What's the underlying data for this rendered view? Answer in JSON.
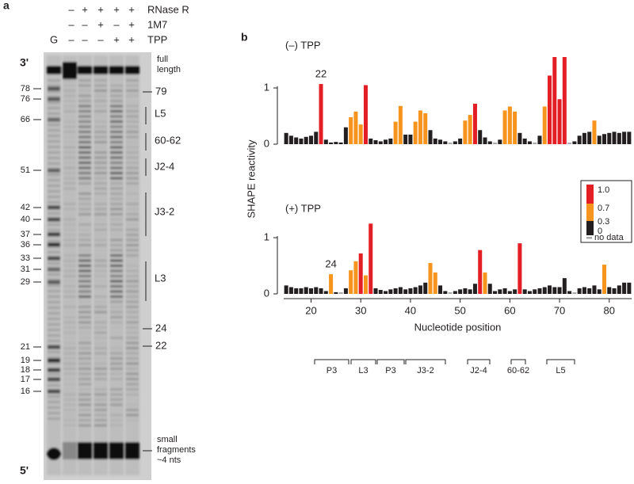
{
  "figure_labels": {
    "a": "a",
    "b": "b"
  },
  "gel": {
    "conditions": [
      {
        "name": "RNase R",
        "signs": [
          "–",
          "+",
          "+",
          "+",
          "+"
        ]
      },
      {
        "name": "1M7",
        "signs": [
          "–",
          "–",
          "+",
          "–",
          "+"
        ]
      },
      {
        "name": "TPP",
        "signs": [
          "–",
          "–",
          "–",
          "+",
          "+"
        ]
      }
    ],
    "ladder_lane": "G",
    "end_labels": [
      "3'",
      "5'"
    ],
    "markers": [
      "78",
      "76",
      "66",
      "51",
      "42",
      "40",
      "37",
      "36",
      "33",
      "31",
      "29",
      "21",
      "19",
      "18",
      "17",
      "16"
    ],
    "full_length": [
      "full",
      "length"
    ],
    "bands": [
      "79",
      "L5",
      "60-62",
      "J2-4",
      "J3-2",
      "L3",
      "24",
      "22"
    ],
    "small_fragments": [
      "small",
      "fragments",
      "~4 nts"
    ]
  },
  "color_scale": {
    "levels": [
      {
        "value": 1,
        "label": "1.0"
      },
      {
        "value": 0.7,
        "label": "0.7"
      },
      {
        "value": 0.3,
        "label": "0.3"
      },
      0
    ],
    "colors": [
      "#e31e24",
      "#f7941d",
      "#231f20"
    ],
    "missing_label": "no data",
    "missing_color": "#a7a9ac"
  },
  "structure_regions": [
    "P3",
    "L3",
    "P3",
    "J3-2",
    "J2-4",
    "60-62",
    "L5"
  ],
  "chart_data": [
    {
      "type": "bar",
      "title": "(–) TPP",
      "ylabel": "SHAPE reactivity",
      "x": [
        15,
        16,
        17,
        18,
        19,
        20,
        21,
        22,
        23,
        24,
        25,
        26,
        27,
        28,
        29,
        30,
        31,
        32,
        33,
        34,
        35,
        36,
        37,
        38,
        39,
        40,
        41,
        42,
        43,
        44,
        45,
        46,
        47,
        48,
        49,
        50,
        51,
        52,
        53,
        54,
        55,
        56,
        57,
        58,
        59,
        60,
        61,
        62,
        63,
        64,
        65,
        66,
        67,
        68,
        69,
        70,
        71,
        72,
        73,
        74,
        75,
        76,
        77,
        78,
        79,
        80,
        81,
        82,
        83,
        84
      ],
      "values": [
        0.2,
        0.15,
        0.12,
        0.1,
        0.13,
        0.15,
        0.22,
        1.07,
        0.08,
        0.03,
        0.04,
        0.03,
        0.3,
        0.48,
        0.58,
        0.35,
        1.05,
        0.1,
        0.07,
        0.05,
        0.08,
        0.1,
        0.4,
        0.68,
        0.17,
        0.17,
        0.4,
        0.6,
        0.55,
        0.25,
        0.1,
        0.08,
        0.05,
        null,
        0.05,
        0.1,
        0.42,
        0.52,
        0.72,
        0.25,
        0.12,
        0.05,
        null,
        0.08,
        0.6,
        0.67,
        0.58,
        0.2,
        0.1,
        0.05,
        null,
        0.15,
        0.67,
        1.22,
        1.55,
        0.8,
        1.55,
        null,
        0.05,
        0.15,
        0.2,
        0.22,
        0.42,
        0.15,
        0.18,
        0.2,
        0.22,
        0.2,
        0.22,
        0.22
      ],
      "xlim": [
        14.5,
        84.5
      ],
      "ylim": [
        0,
        1.55
      ],
      "yticks": [
        0,
        1
      ],
      "annotations": [
        {
          "text": "22",
          "x": 22
        }
      ]
    },
    {
      "type": "bar",
      "title": "(+) TPP",
      "xlabel": "Nucleotide position",
      "x": [
        15,
        16,
        17,
        18,
        19,
        20,
        21,
        22,
        23,
        24,
        25,
        26,
        27,
        28,
        29,
        30,
        31,
        32,
        33,
        34,
        35,
        36,
        37,
        38,
        39,
        40,
        41,
        42,
        43,
        44,
        45,
        46,
        47,
        48,
        49,
        50,
        51,
        52,
        53,
        54,
        55,
        56,
        57,
        58,
        59,
        60,
        61,
        62,
        63,
        64,
        65,
        66,
        67,
        68,
        69,
        70,
        71,
        72,
        73,
        74,
        75,
        76,
        77,
        78,
        79,
        80,
        81,
        82,
        83,
        84
      ],
      "values": [
        0.15,
        0.12,
        0.1,
        0.1,
        0.12,
        0.1,
        0.12,
        0.1,
        0.05,
        0.35,
        0.03,
        null,
        0.1,
        0.42,
        0.58,
        0.72,
        0.33,
        1.25,
        0.1,
        0.07,
        0.05,
        0.08,
        0.1,
        0.12,
        0.08,
        0.1,
        0.12,
        0.15,
        0.2,
        0.55,
        0.38,
        0.15,
        0.05,
        null,
        0.05,
        0.08,
        0.1,
        0.08,
        0.18,
        0.78,
        0.38,
        0.18,
        0.05,
        0.08,
        0.1,
        0.05,
        0.08,
        0.9,
        0.08,
        0.05,
        0.08,
        0.1,
        0.12,
        0.15,
        0.12,
        0.12,
        0.28,
        0.05,
        null,
        0.1,
        0.12,
        0.1,
        0.15,
        0.08,
        0.52,
        0.12,
        0.1,
        0.15,
        0.2,
        0.2
      ],
      "xlim": [
        14.5,
        84.5
      ],
      "ylim": [
        0,
        1.55
      ],
      "yticks": [
        0,
        1
      ],
      "xticks": [
        20,
        30,
        40,
        50,
        60,
        70,
        80
      ],
      "annotations": [
        {
          "text": "24",
          "x": 24
        }
      ]
    }
  ]
}
